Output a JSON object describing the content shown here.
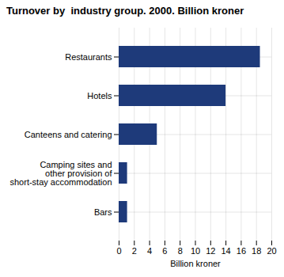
{
  "chart_data": {
    "type": "bar",
    "orientation": "horizontal",
    "title": "Turnover by  industry group. 2000. Billion kroner",
    "categories": [
      "Bars",
      "Camping sites and\nother provision of\nshort-stay accommodation",
      "Canteens and catering",
      "Hotels",
      "Restaurants"
    ],
    "values": [
      1.1,
      1.1,
      5.0,
      14.0,
      18.5
    ],
    "color": "#1e3a7a",
    "xlabel": "Billion kroner",
    "xlim": [
      0,
      20
    ],
    "xticks": [
      0,
      2,
      4,
      6,
      8,
      10,
      12,
      14,
      16,
      18,
      20
    ],
    "grid": true
  }
}
